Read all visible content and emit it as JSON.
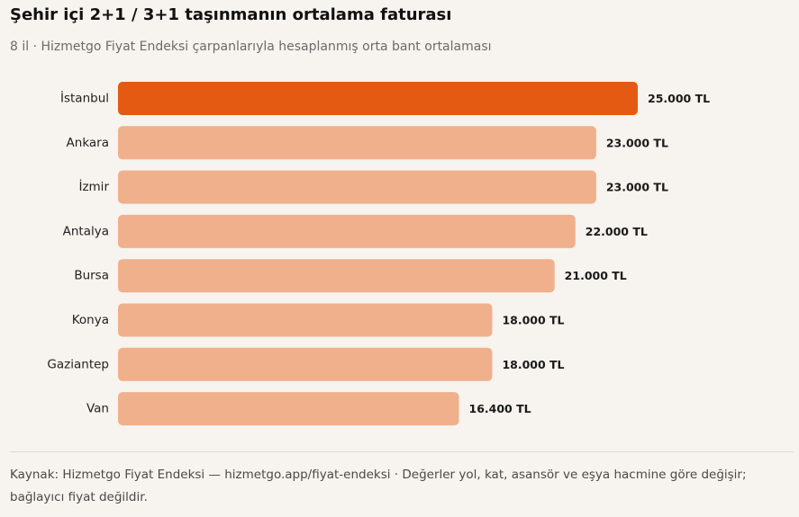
{
  "header": {
    "title": "Şehir içi 2+1 / 3+1 taşınmanın ortalama faturası",
    "subtitle": "8 il · Hizmetgo Fiyat Endeksi çarpanlarıyla hesaplanmış orta bant ortalaması"
  },
  "footer": {
    "source": "Kaynak: Hizmetgo Fiyat Endeksi — hizmetgo.app/fiyat-endeksi · Değerler yol, kat, asansör ve eşya hacmine göre değişir; bağlayıcı fiyat değildir."
  },
  "colors": {
    "highlight": "#e55a12",
    "bar": "#f0b08c"
  },
  "chart_data": {
    "type": "bar",
    "orientation": "horizontal",
    "categories": [
      "İstanbul",
      "Ankara",
      "İzmir",
      "Antalya",
      "Bursa",
      "Konya",
      "Gaziantep",
      "Van"
    ],
    "values": [
      25000,
      23000,
      23000,
      22000,
      21000,
      18000,
      18000,
      16400
    ],
    "value_labels": [
      "25.000 TL",
      "23.000 TL",
      "23.000 TL",
      "22.000 TL",
      "21.000 TL",
      "18.000 TL",
      "18.000 TL",
      "16.400 TL"
    ],
    "highlighted_category": "İstanbul",
    "xlim": [
      0,
      25000
    ],
    "grid": false,
    "legend": "none"
  }
}
